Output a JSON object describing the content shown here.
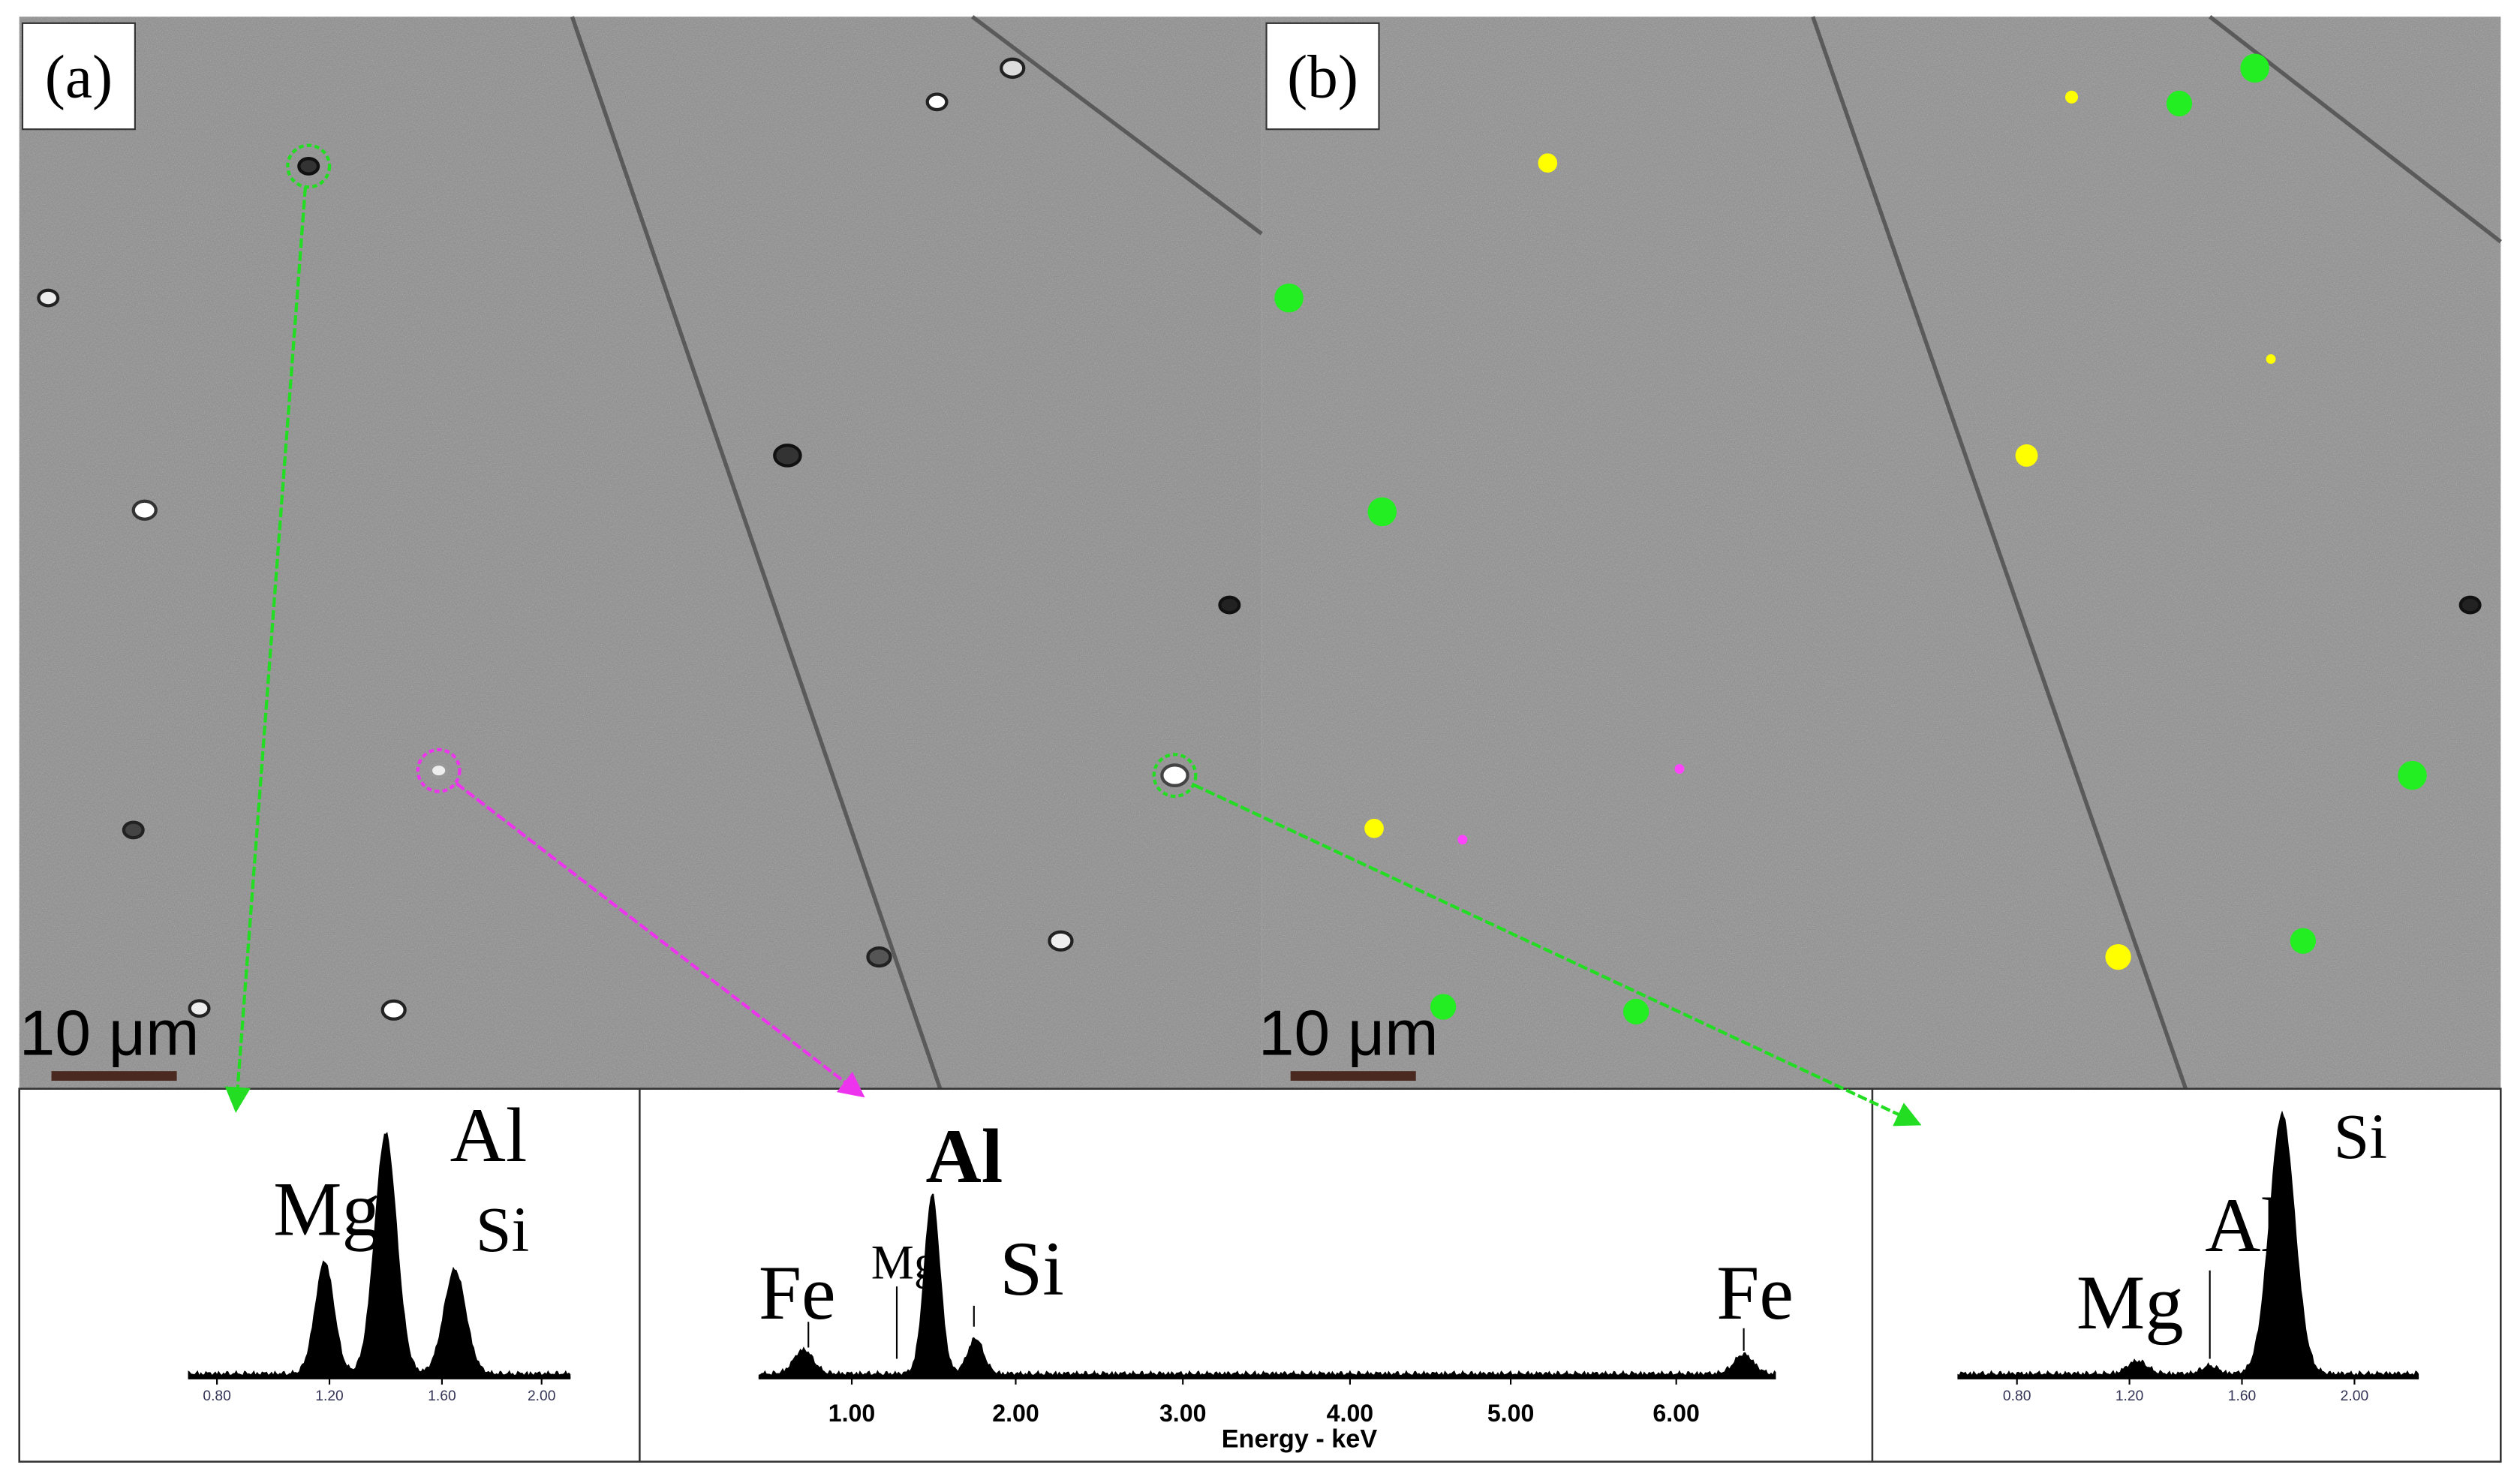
{
  "panels": [
    {
      "label": "(a)",
      "scale_bar": "10 μm"
    },
    {
      "label": "(b)",
      "scale_bar": "10 μm"
    }
  ],
  "spectra": [
    {
      "peaks": [
        "Mg",
        "Al",
        "Si"
      ],
      "ticks": [
        "0.80",
        "1.20",
        "1.60",
        "2.00"
      ]
    },
    {
      "peaks": [
        "Fe",
        "Mg",
        "Al",
        "Si",
        "Fe"
      ],
      "ticks": [
        "1.00",
        "2.00",
        "3.00",
        "4.00",
        "5.00",
        "6.00"
      ],
      "x_label": "Energy - keV"
    },
    {
      "peaks": [
        "Mg",
        "Al",
        "Si"
      ],
      "ticks": [
        "0.80",
        "1.20",
        "1.60",
        "2.00"
      ]
    }
  ]
}
